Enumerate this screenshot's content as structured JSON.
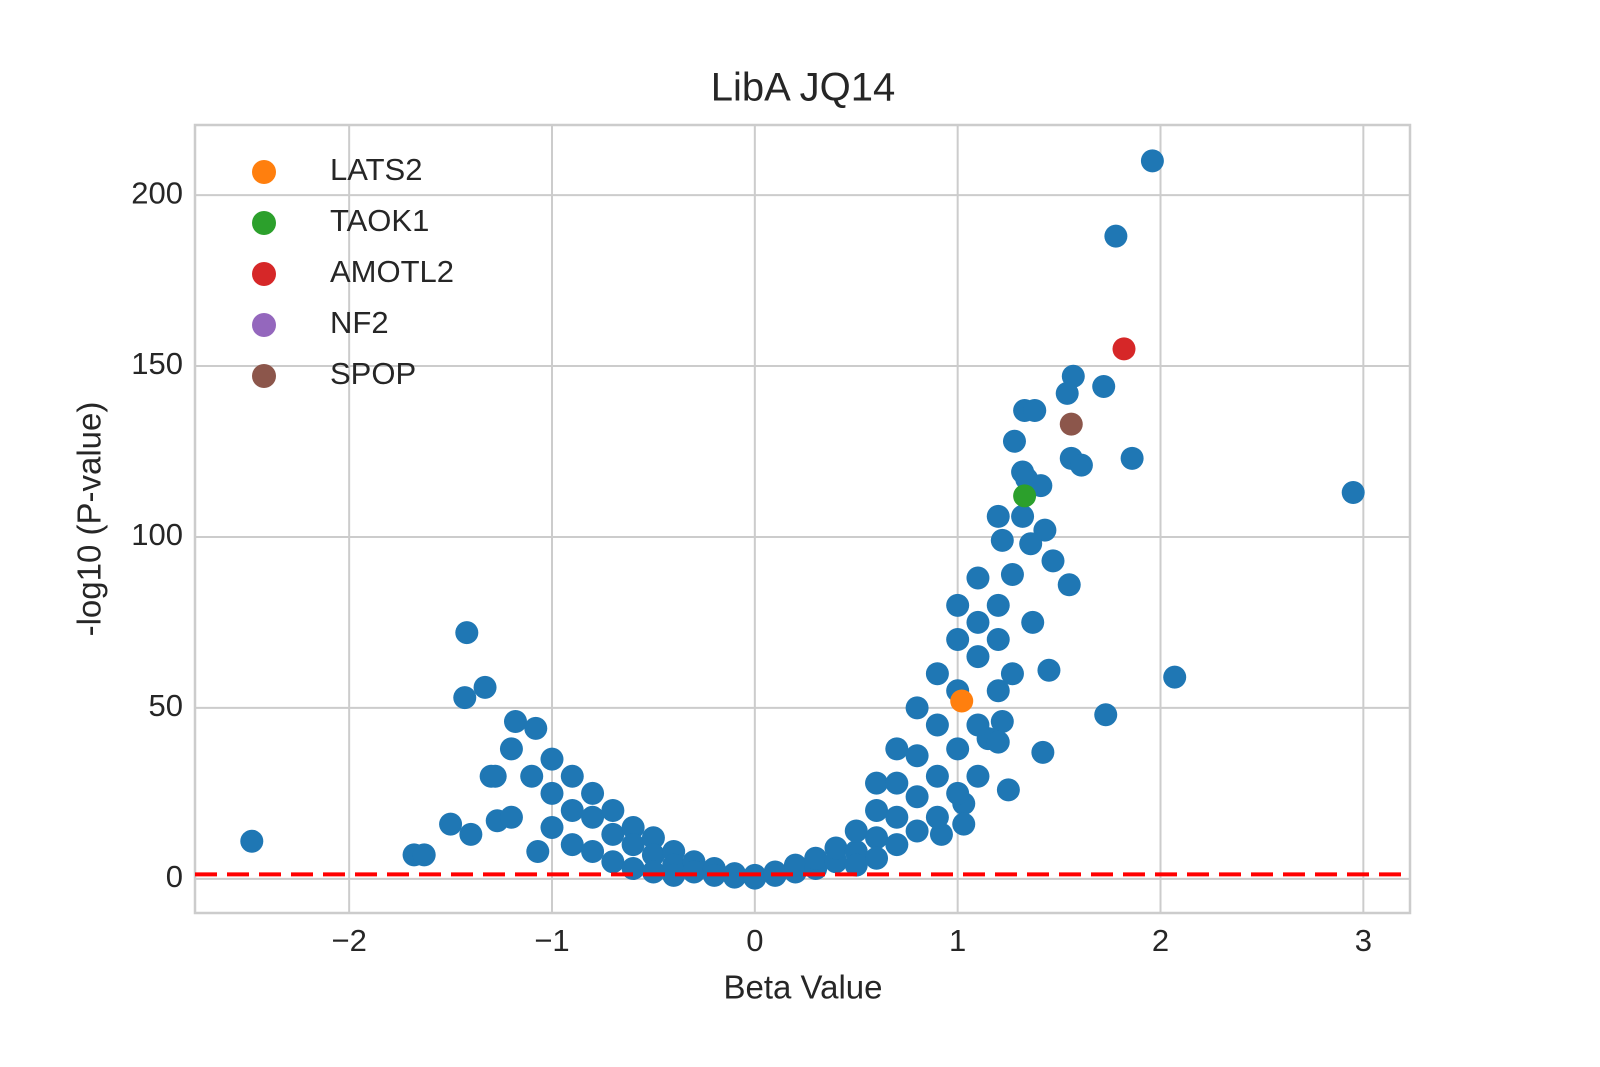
{
  "chart_data": {
    "type": "scatter",
    "title": "LibA JQ14",
    "xlabel": "Beta Value",
    "ylabel": "-log10 (P-value)",
    "xlim": [
      -2.76,
      3.23
    ],
    "ylim": [
      -10,
      220.5
    ],
    "xticks": [
      {
        "value": -2,
        "label": "−2"
      },
      {
        "value": -1,
        "label": "−1"
      },
      0,
      1,
      2,
      3
    ],
    "yticks": [
      0,
      50,
      100,
      150,
      200
    ],
    "grid": true,
    "legend": "upper left",
    "hline": {
      "value": 1.3,
      "color": "#ff0000"
    },
    "series": [
      {
        "color": "#1f77b4",
        "x": [
          -2.48,
          -1.42,
          -1.43,
          -1.33,
          -1.18,
          -1.2,
          -1.3,
          -1.28,
          -1.27,
          -1.2,
          -1.5,
          -1.4,
          -1.68,
          -1.63,
          -1.07,
          -1.1,
          -1.08,
          1.96,
          1.78,
          1.57,
          1.72,
          1.54,
          1.33,
          1.38,
          1.28,
          1.86,
          1.56,
          1.61,
          1.32,
          1.34,
          1.41,
          1.32,
          1.2,
          1.43,
          1.22,
          1.36,
          1.47,
          1.55,
          2.95,
          2.07,
          1.73,
          1.42,
          1.45,
          1.25,
          1.37,
          1.1,
          1.27,
          1.03,
          1.03,
          0.92,
          1.27,
          1.15,
          1.22,
          -1,
          -1,
          -1,
          -0.9,
          -0.9,
          -0.9,
          -0.8,
          -0.8,
          -0.8,
          -0.7,
          -0.7,
          -0.7,
          -0.6,
          -0.6,
          -0.6,
          -0.5,
          -0.5,
          -0.5,
          -0.4,
          -0.4,
          -0.4,
          -0.3,
          -0.3,
          -0.2,
          -0.2,
          -0.1,
          -0.1,
          0,
          0,
          0.1,
          0.1,
          0.2,
          0.2,
          0.3,
          0.3,
          0.4,
          0.4,
          0.5,
          0.5,
          0.5,
          0.6,
          0.6,
          0.6,
          0.6,
          0.7,
          0.7,
          0.7,
          0.7,
          0.8,
          0.8,
          0.8,
          0.8,
          0.9,
          0.9,
          0.9,
          0.9,
          1,
          1,
          1,
          1,
          1,
          1.1,
          1.1,
          1.1,
          1.1,
          1.2,
          1.2,
          1.2,
          1.2
        ],
        "y": [
          11,
          72,
          53,
          56,
          46,
          38,
          30,
          30,
          17,
          18,
          16,
          13,
          7,
          7,
          8,
          30,
          44,
          210,
          188,
          147,
          144,
          142,
          137,
          137,
          128,
          123,
          123,
          121,
          119,
          117,
          115,
          106,
          106,
          102,
          99,
          98,
          93,
          86,
          113,
          59,
          48,
          37,
          61,
          26,
          75,
          88,
          89,
          22,
          16,
          13,
          60,
          41,
          46,
          35,
          25,
          15,
          30,
          20,
          10,
          25,
          18,
          8,
          20,
          13,
          5,
          15,
          10,
          3,
          12,
          7,
          2,
          8,
          4,
          1,
          5,
          2,
          3,
          1,
          1.5,
          0.5,
          0.2,
          1,
          1,
          2,
          2,
          4,
          3,
          6,
          5,
          9,
          8,
          14,
          4,
          12,
          20,
          6,
          28,
          18,
          28,
          10,
          38,
          24,
          36,
          14,
          50,
          30,
          45,
          18,
          60,
          38,
          55,
          25,
          70,
          80,
          45,
          65,
          30,
          75,
          55,
          70,
          40,
          80
        ]
      },
      {
        "name": "LATS2",
        "color": "#ff7f0e",
        "x": [
          1.02
        ],
        "y": [
          52
        ]
      },
      {
        "name": "TAOK1",
        "color": "#2ca02c",
        "x": [
          1.33
        ],
        "y": [
          112
        ]
      },
      {
        "name": "AMOTL2",
        "color": "#d62728",
        "x": [
          1.82
        ],
        "y": [
          155
        ]
      },
      {
        "name": "NF2",
        "color": "#9467bd",
        "x": [],
        "y": []
      },
      {
        "name": "SPOP",
        "color": "#8c564b",
        "x": [
          1.56
        ],
        "y": [
          133
        ]
      }
    ]
  }
}
